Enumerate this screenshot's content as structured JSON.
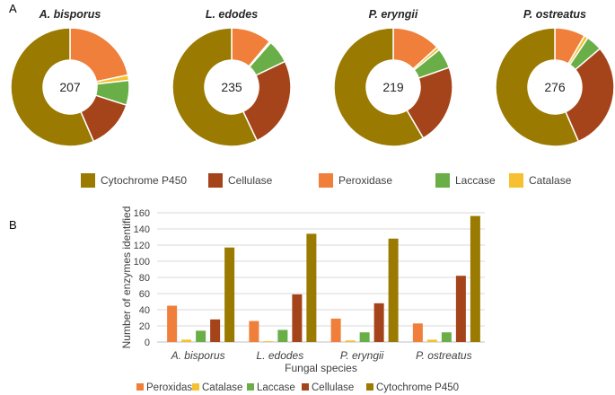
{
  "figure": {
    "panel_a_label": "A",
    "panel_b_label": "B"
  },
  "colors": {
    "Cytochrome P450": "#9a7a00",
    "Cellulase": "#a5441a",
    "Peroxidase": "#ef7f3a",
    "Laccase": "#6aae47",
    "Catalase": "#f6c030"
  },
  "chart_data": [
    {
      "type": "pie",
      "subtype": "donut",
      "title": "A. bisporus",
      "center_label": "207",
      "categories": [
        "Peroxidase",
        "Catalase",
        "Laccase",
        "Cellulase",
        "Cytochrome P450"
      ],
      "values": [
        45,
        3,
        14,
        28,
        117
      ]
    },
    {
      "type": "pie",
      "subtype": "donut",
      "title": "L. edodes",
      "center_label": "235",
      "categories": [
        "Peroxidase",
        "Catalase",
        "Laccase",
        "Cellulase",
        "Cytochrome P450"
      ],
      "values": [
        26,
        1,
        15,
        59,
        134
      ]
    },
    {
      "type": "pie",
      "subtype": "donut",
      "title": "P. eryngii",
      "center_label": "219",
      "categories": [
        "Peroxidase",
        "Catalase",
        "Laccase",
        "Cellulase",
        "Cytochrome P450"
      ],
      "values": [
        29,
        2,
        12,
        48,
        128
      ]
    },
    {
      "type": "pie",
      "subtype": "donut",
      "title": "P. ostreatus",
      "center_label": "276",
      "categories": [
        "Peroxidase",
        "Catalase",
        "Laccase",
        "Cellulase",
        "Cytochrome P450"
      ],
      "values": [
        23,
        3,
        12,
        82,
        156
      ]
    },
    {
      "type": "bar",
      "title": "",
      "xlabel": "Fungal species",
      "ylabel": "Number of enzymes identified",
      "ylim": [
        0,
        160
      ],
      "yticks": [
        0,
        20,
        40,
        60,
        80,
        100,
        120,
        140,
        160
      ],
      "grid": true,
      "legend_position": "bottom",
      "categories": [
        "A. bisporus",
        "L. edodes",
        "P. eryngii",
        "P. ostreatus"
      ],
      "series": [
        {
          "name": "Peroxidase",
          "values": [
            45,
            26,
            29,
            23
          ]
        },
        {
          "name": "Catalase",
          "values": [
            3,
            1,
            2,
            3
          ]
        },
        {
          "name": "Laccase",
          "values": [
            14,
            15,
            12,
            12
          ]
        },
        {
          "name": "Cellulase",
          "values": [
            28,
            59,
            48,
            82
          ]
        },
        {
          "name": "Cytochrome P450",
          "values": [
            117,
            134,
            128,
            156
          ]
        }
      ]
    }
  ],
  "legend_a": {
    "items": [
      "Cytochrome P450",
      "Cellulase",
      "Peroxidase",
      "Laccase",
      "Catalase"
    ]
  }
}
